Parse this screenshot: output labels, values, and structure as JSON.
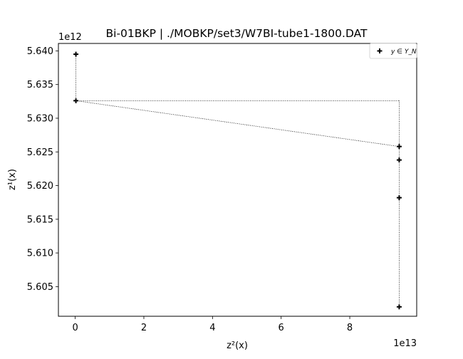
{
  "chart_data": {
    "type": "scatter",
    "title": "Bi-01BKP | ./MOBKP/set3/W7BI-tube1-1800.DAT",
    "xlabel": "z²(x)",
    "ylabel": "z¹(x)",
    "x_offset_text": "1e13",
    "y_offset_text": "1e12",
    "xlim": [
      -4900000000000.0,
      99500000000000.0
    ],
    "ylim": [
      5600600000000.0,
      5641100000000.0
    ],
    "xticks": [
      0,
      20000000000000.0,
      40000000000000.0,
      60000000000000.0,
      80000000000000.0
    ],
    "xtick_labels": [
      "0",
      "2",
      "4",
      "6",
      "8"
    ],
    "yticks": [
      5605000000000.0,
      5610000000000.0,
      5615000000000.0,
      5620000000000.0,
      5625000000000.0,
      5630000000000.0,
      5635000000000.0,
      5640000000000.0
    ],
    "ytick_labels": [
      "5.605",
      "5.610",
      "5.615",
      "5.620",
      "5.625",
      "5.630",
      "5.635",
      "5.640"
    ],
    "grid": false,
    "legend_position": "top-right",
    "series": [
      {
        "name": "y ∈ Y_N",
        "marker": "plus",
        "color": "#000000",
        "points": [
          {
            "x": 200000000000.0,
            "y": 5639500000000.0
          },
          {
            "x": 200000000000.0,
            "y": 5632600000000.0
          },
          {
            "x": 94400000000000.0,
            "y": 5625800000000.0
          },
          {
            "x": 94400000000000.0,
            "y": 5623800000000.0
          },
          {
            "x": 94400000000000.0,
            "y": 5618200000000.0
          },
          {
            "x": 94400000000000.0,
            "y": 5602000000000.0
          }
        ]
      }
    ],
    "dotted_lines": [
      {
        "x": [
          200000000000.0,
          200000000000.0
        ],
        "y": [
          5639500000000.0,
          5632600000000.0
        ]
      },
      {
        "x": [
          200000000000.0,
          94400000000000.0
        ],
        "y": [
          5632600000000.0,
          5632600000000.0
        ]
      },
      {
        "x": [
          200000000000.0,
          94400000000000.0
        ],
        "y": [
          5632600000000.0,
          5625800000000.0
        ]
      },
      {
        "x": [
          94400000000000.0,
          94400000000000.0
        ],
        "y": [
          5632600000000.0,
          5602000000000.0
        ]
      }
    ]
  }
}
